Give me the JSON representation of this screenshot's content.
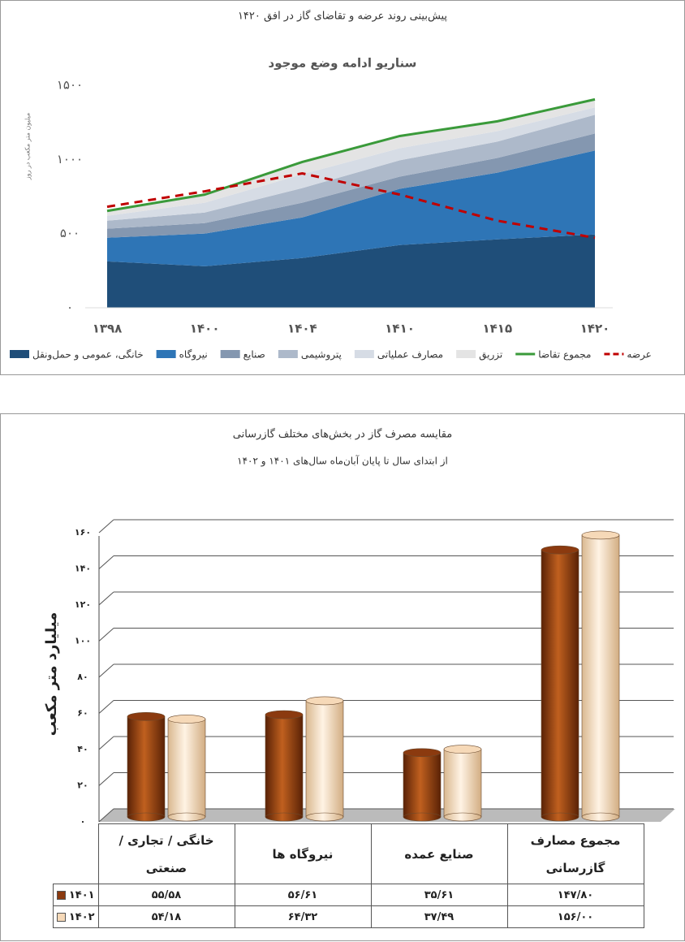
{
  "chart_data": [
    {
      "type": "area",
      "title": "پیش‌بینی روند عرضه و تقاضای گاز در افق ۱۴۲۰",
      "subtitle": "سناریو ادامه وضع موجود",
      "y_label": "میلیون متر مکعب در روز",
      "categories": [
        "۱۳۹۸",
        "۱۴۰۰",
        "۱۴۰۴",
        "۱۴۱۰",
        "۱۴۱۵",
        "۱۴۲۰"
      ],
      "ylim": [
        0,
        1500
      ],
      "yticks": [
        {
          "value": 0,
          "label": "۰"
        },
        {
          "value": 500,
          "label": "۵۰۰"
        },
        {
          "value": 1000,
          "label": "۱۰۰۰"
        },
        {
          "value": 1500,
          "label": "۱۵۰۰"
        }
      ],
      "grid": false,
      "series": [
        {
          "name": "خانگی، عمومی و حمل‌ونقل",
          "color": "#1f4e79",
          "style": "area",
          "values": [
            313,
            280,
            335,
            423,
            461,
            494
          ]
        },
        {
          "name": "نیروگاه",
          "color": "#2e75b6",
          "style": "area",
          "values": [
            159,
            220,
            274,
            379,
            450,
            566
          ]
        },
        {
          "name": "صنایع",
          "color": "#8497b0",
          "style": "area",
          "values": [
            61,
            71,
            99,
            82,
            99,
            115
          ]
        },
        {
          "name": "پتروشیمی",
          "color": "#adb9ca",
          "style": "area",
          "values": [
            54,
            71,
            99,
            110,
            110,
            126
          ]
        },
        {
          "name": "مصارف عملیاتی",
          "color": "#d6dce5",
          "style": "area",
          "values": [
            33,
            66,
            93,
            82,
            71,
            50
          ]
        },
        {
          "name": "تزریق",
          "color": "#e4e4e4",
          "style": "area",
          "values": [
            33,
            55,
            83,
            82,
            66,
            54
          ]
        },
        {
          "name": "مجموع تقاضا",
          "color": "#3a9a3a",
          "style": "line",
          "values": [
            653,
            763,
            983,
            1158,
            1257,
            1405
          ]
        },
        {
          "name": "عرضه",
          "color": "#c00000",
          "style": "line",
          "dash": true,
          "values": [
            681,
            785,
            906,
            763,
            587,
            472
          ]
        }
      ]
    },
    {
      "type": "bar",
      "title": "مقایسه مصرف گاز در بخش‌های مختلف گازرسانی",
      "subtitle": "از ابتدای سال تا پایان آبان‌ماه سال‌های ۱۴۰۱ و ۱۴۰۲",
      "y_label": "میلیارد متر مکعب",
      "categories": [
        "خانگی / تجاری / صنعتی",
        "نیروگاه ها",
        "صنایع عمده",
        "مجموع مصارف گازرسانی"
      ],
      "ylim": [
        0,
        160
      ],
      "yticks": [
        {
          "value": 0,
          "label": "۰"
        },
        {
          "value": 20,
          "label": "۲۰"
        },
        {
          "value": 40,
          "label": "۴۰"
        },
        {
          "value": 60,
          "label": "۶۰"
        },
        {
          "value": 80,
          "label": "۸۰"
        },
        {
          "value": 100,
          "label": "۱۰۰"
        },
        {
          "value": 120,
          "label": "۱۲۰"
        },
        {
          "value": 140,
          "label": "۱۴۰"
        },
        {
          "value": 160,
          "label": "۱۶۰"
        }
      ],
      "grid": true,
      "series": [
        {
          "name": "۱۴۰۱",
          "color": "#8b3a0f",
          "values": [
            55.58,
            56.61,
            35.61,
            147.8
          ],
          "value_labels": [
            "۵۵/۵۸",
            "۵۶/۶۱",
            "۳۵/۶۱",
            "۱۴۷/۸۰"
          ]
        },
        {
          "name": "۱۴۰۲",
          "color": "#f6d9b8",
          "values": [
            54.18,
            64.32,
            37.49,
            156.0
          ],
          "value_labels": [
            "۵۴/۱۸",
            "۶۴/۳۲",
            "۳۷/۴۹",
            "۱۵۶/۰۰"
          ]
        }
      ]
    }
  ]
}
